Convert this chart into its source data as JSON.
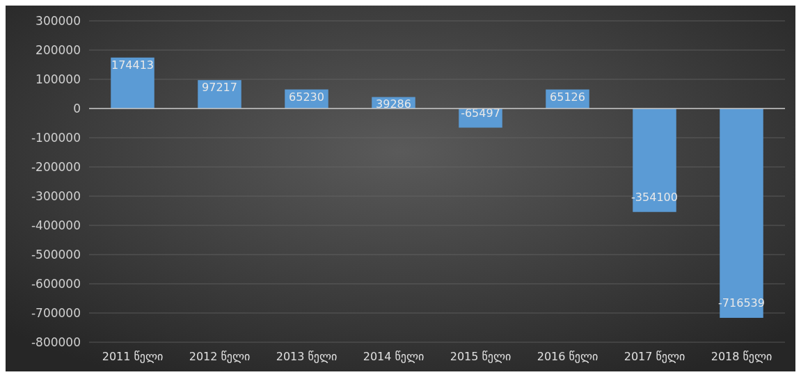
{
  "chart_data": {
    "type": "bar",
    "categories": [
      "2011 წელი",
      "2012 წელი",
      "2013 წელი",
      "2014 წელი",
      "2015 წელი",
      "2016 წელი",
      "2017 წელი",
      "2018 წელი"
    ],
    "values": [
      174413,
      97217,
      65230,
      39286,
      -65497,
      65126,
      -354100,
      -716539
    ],
    "color": "#5b9bd5",
    "ylim": [
      -800000,
      300000
    ],
    "yticks": [
      -800000,
      -700000,
      -600000,
      -500000,
      -400000,
      -300000,
      -200000,
      -100000,
      0,
      100000,
      200000,
      300000
    ],
    "grid": "y",
    "data_labels": true
  }
}
